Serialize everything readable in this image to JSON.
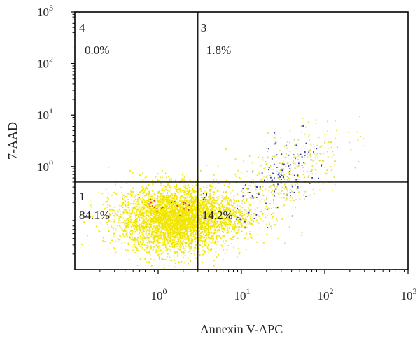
{
  "chart_data": {
    "type": "scatter",
    "title": "",
    "xlabel": "Annexin V-APC",
    "ylabel": "7-AAD",
    "x_scale": "log",
    "y_scale": "log",
    "xlim": [
      0.1,
      1000
    ],
    "ylim": [
      0.01,
      1000
    ],
    "x_ticks": [
      {
        "value": 1,
        "base": "10",
        "exp": "0"
      },
      {
        "value": 10,
        "base": "10",
        "exp": "1"
      },
      {
        "value": 100,
        "base": "10",
        "exp": "2"
      },
      {
        "value": 1000,
        "base": "10",
        "exp": "3"
      }
    ],
    "y_ticks": [
      {
        "value": 1,
        "base": "10",
        "exp": "0"
      },
      {
        "value": 10,
        "base": "10",
        "exp": "1"
      },
      {
        "value": 100,
        "base": "10",
        "exp": "2"
      },
      {
        "value": 1000,
        "base": "10",
        "exp": "3"
      }
    ],
    "gate_x": 3.0,
    "gate_y": 0.5,
    "quadrants": [
      {
        "id": "4",
        "percent": "0.0%",
        "position": "top-left"
      },
      {
        "id": "3",
        "percent": "1.8%",
        "position": "top-right"
      },
      {
        "id": "1",
        "percent": "84.1%",
        "position": "bottom-left"
      },
      {
        "id": "2",
        "percent": "14.2%",
        "position": "bottom-right"
      }
    ],
    "clusters": [
      {
        "label": "main",
        "center": [
          1.5,
          0.095
        ],
        "spread": [
          0.33,
          0.32
        ],
        "count": 3500,
        "color": "#f2e600"
      },
      {
        "label": "tail",
        "center": [
          3.8,
          0.11
        ],
        "spread": [
          0.3,
          0.2
        ],
        "count": 600,
        "color": "#f2e600"
      },
      {
        "label": "upper",
        "center": [
          30,
          0.6
        ],
        "spread": [
          0.38,
          0.42
        ],
        "count": 420,
        "color": "#e8e040"
      },
      {
        "label": "upper-blue",
        "center": [
          32,
          0.6
        ],
        "spread": [
          0.28,
          0.3
        ],
        "count": 110,
        "color": "#2a3fb0"
      },
      {
        "label": "red",
        "center": [
          1.2,
          0.16
        ],
        "spread": [
          0.25,
          0.1
        ],
        "count": 22,
        "color": "#e0203a"
      }
    ],
    "grid": false,
    "legend": "none"
  }
}
